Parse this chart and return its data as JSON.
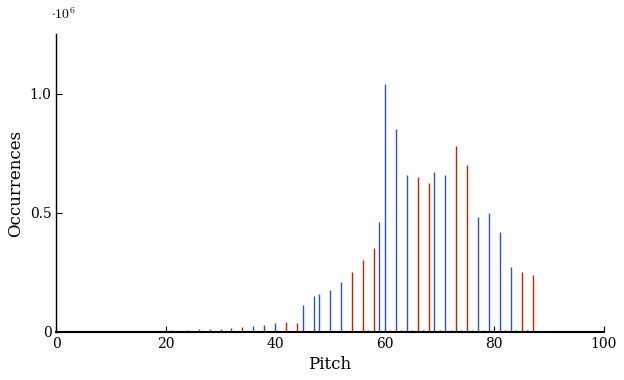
{
  "title": "",
  "xlabel": "Pitch",
  "ylabel": "Occurrences",
  "xlim": [
    0,
    100
  ],
  "ylim": [
    0,
    1250000.0
  ],
  "pitches": [
    21,
    22,
    23,
    24,
    25,
    26,
    27,
    28,
    29,
    30,
    31,
    32,
    33,
    34,
    35,
    36,
    37,
    38,
    39,
    40,
    41,
    42,
    43,
    44,
    45,
    46,
    47,
    48,
    49,
    50,
    51,
    52,
    53,
    54,
    55,
    56,
    57,
    58,
    59,
    60,
    61,
    62,
    63,
    64,
    65,
    66,
    67,
    68,
    69,
    70,
    71,
    72,
    73,
    74,
    75,
    76,
    77,
    78,
    79,
    80,
    81,
    82,
    83,
    84,
    85,
    86,
    87,
    88
  ],
  "values": [
    5000,
    500,
    2500,
    7000,
    500,
    10000,
    500,
    9000,
    500,
    13000,
    500,
    15000,
    500,
    20000,
    500,
    25000,
    1500,
    30000,
    1500,
    35000,
    500,
    42000,
    500,
    35000,
    110000,
    2000,
    150000,
    160000,
    2000,
    175000,
    2000,
    210000,
    2000,
    250000,
    2000,
    300000,
    5000,
    350000,
    460000,
    1040000,
    8000,
    850000,
    8000,
    660000,
    8000,
    650000,
    8000,
    625000,
    670000,
    8000,
    660000,
    8000,
    780000,
    5000,
    700000,
    5000,
    480000,
    5000,
    500000,
    5000,
    420000,
    5000,
    270000,
    5000,
    250000,
    5000,
    240000,
    2000
  ],
  "blue_color": "#3355aa",
  "red_color": "#cc2200",
  "sharps_mod12": [
    1,
    3,
    6,
    8,
    10
  ]
}
